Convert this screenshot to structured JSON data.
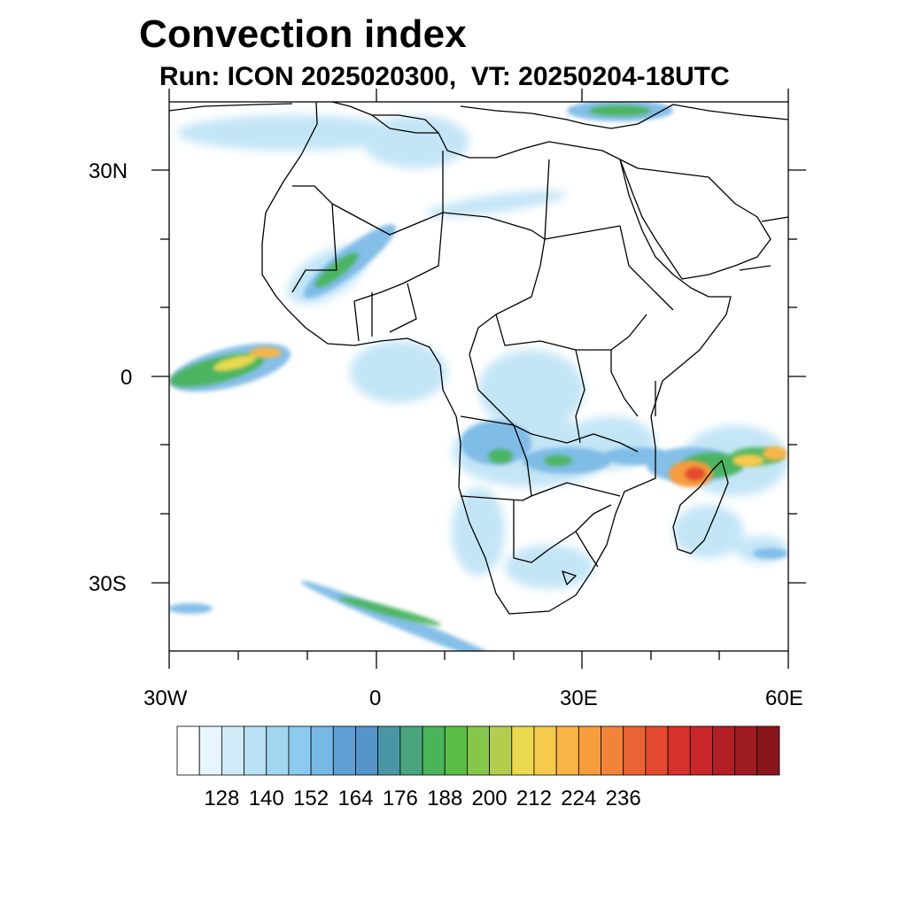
{
  "title": "Convection index",
  "subtitle": "Run: ICON 2025020300,  VT: 20250204-18UTC",
  "axes": {
    "lon_range": [
      -30,
      60
    ],
    "lat_range": [
      -40,
      40
    ],
    "x_ticks": [
      "30W",
      "0",
      "30E",
      "60E"
    ],
    "y_ticks": [
      "30N",
      "0",
      "30S"
    ]
  },
  "colorbar": {
    "labels": [
      "128",
      "140",
      "152",
      "164",
      "176",
      "188",
      "200",
      "212",
      "224",
      "236"
    ],
    "colors": [
      "#ffffff",
      "#e8f5fc",
      "#d0ebf8",
      "#b9e1f5",
      "#a2d7f2",
      "#8ccbef",
      "#78b8e6",
      "#5f9fd6",
      "#5593c9",
      "#4a96a6",
      "#4aa57f",
      "#4ab45a",
      "#59be48",
      "#86c64a",
      "#b3ce4e",
      "#ead84f",
      "#f6cb4d",
      "#f7b547",
      "#f69d3e",
      "#f2833a",
      "#ea6334",
      "#e44a2f",
      "#d8312c",
      "#c9262b",
      "#b21f27",
      "#9e1b22",
      "#8a161d"
    ]
  }
}
